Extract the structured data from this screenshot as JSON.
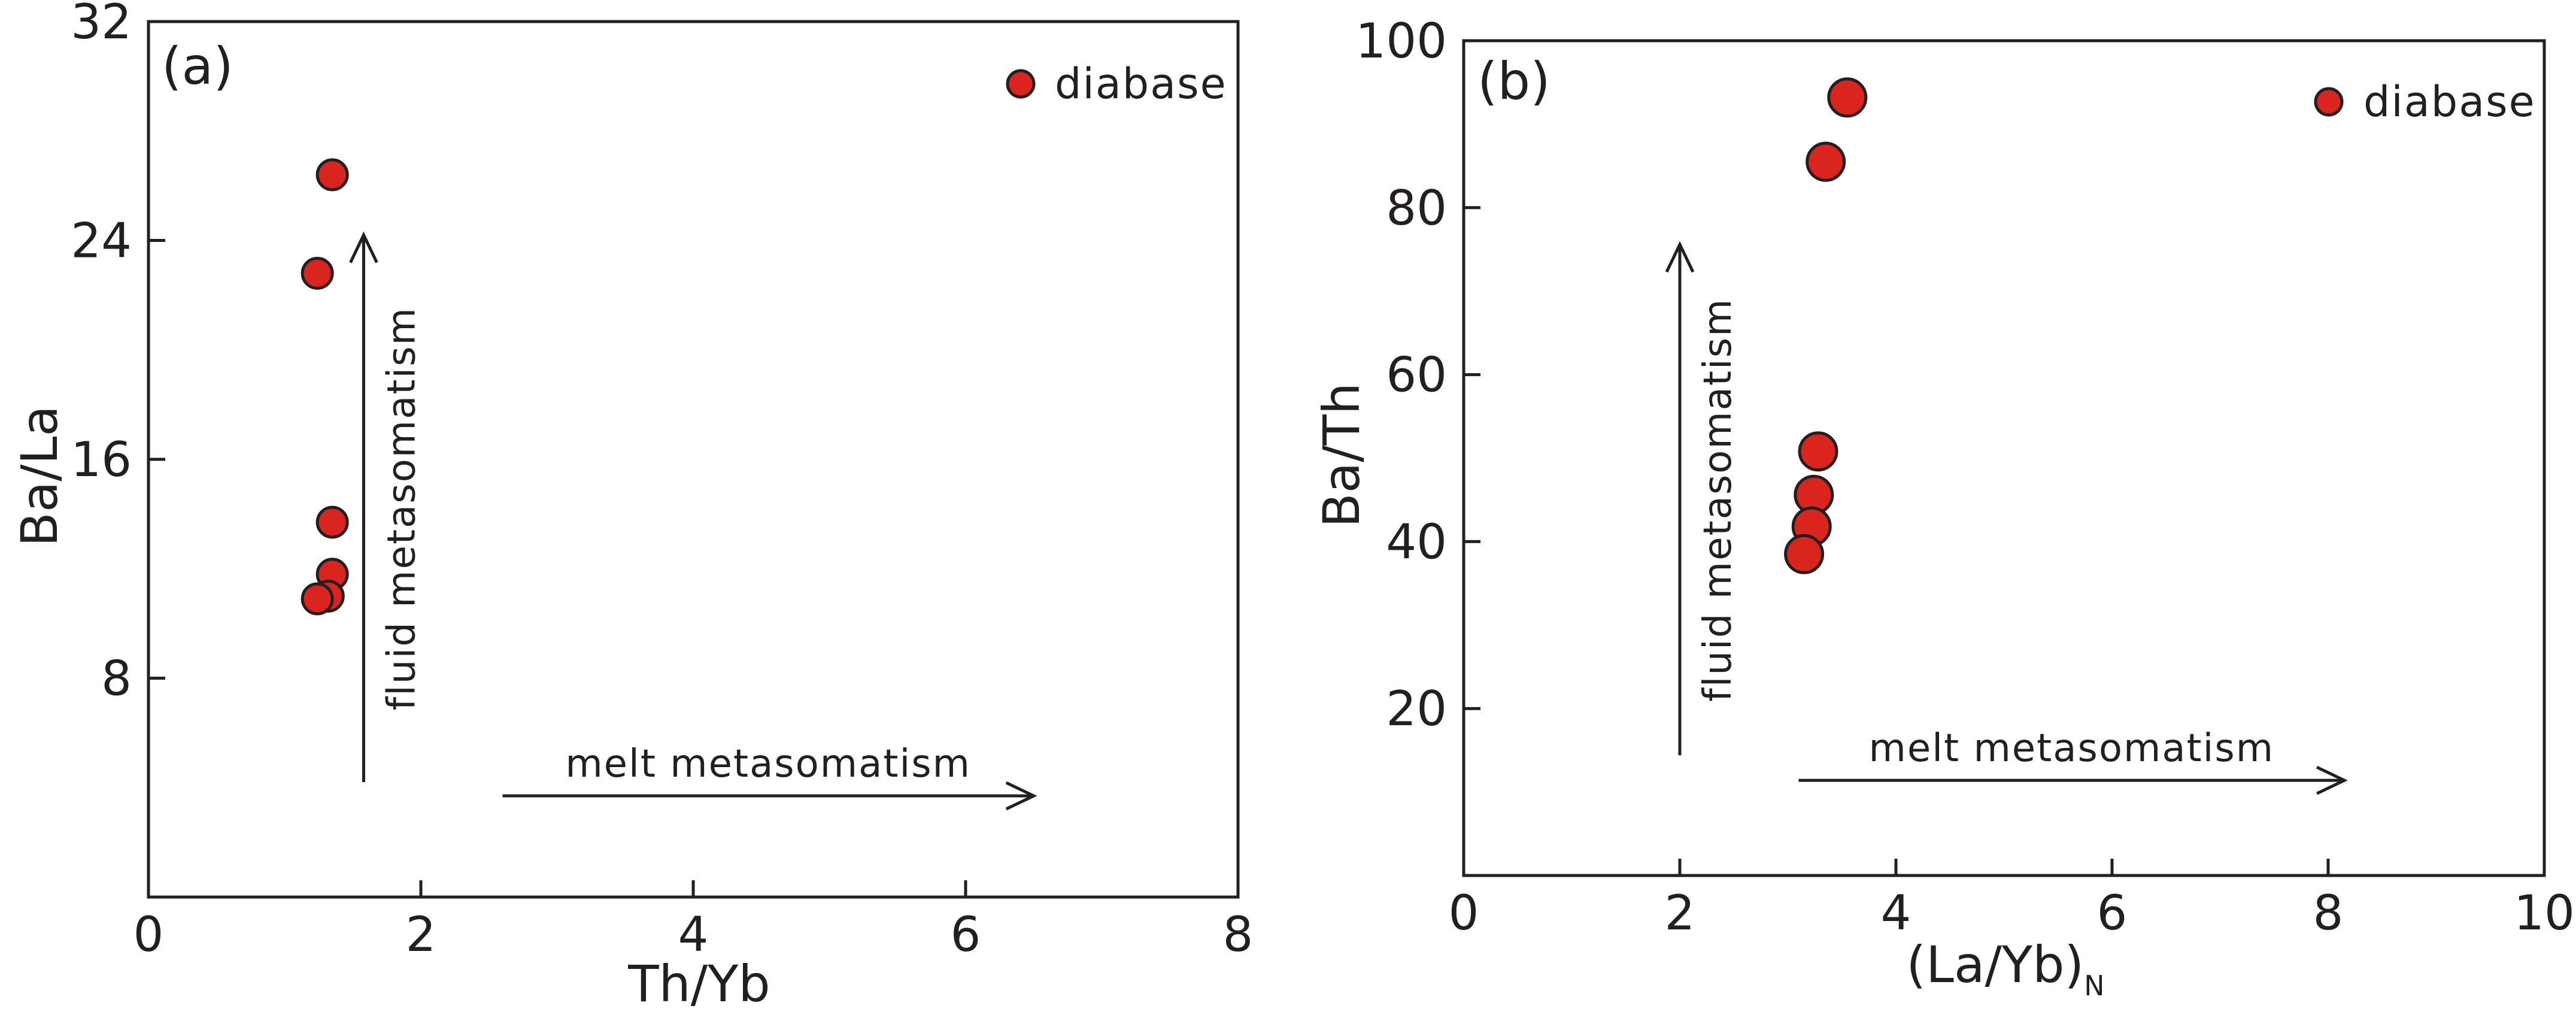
{
  "chart_data": [
    {
      "type": "scatter",
      "panel_label": "(a)",
      "xlabel": "Th/Yb",
      "ylabel": "Ba/La",
      "xlim": [
        0,
        8
      ],
      "ylim": [
        0,
        32
      ],
      "xticks": [
        0,
        2,
        4,
        6,
        8
      ],
      "yticks": [
        8,
        16,
        24,
        32
      ],
      "x_tick_labels": [
        "0",
        "2",
        "4",
        "6",
        "8"
      ],
      "y_tick_labels": [
        "8",
        "16",
        "24",
        "32"
      ],
      "grid": false,
      "legend_position": "top-right",
      "series": [
        {
          "name": "diabase",
          "color": "#d9251d",
          "points": [
            {
              "x": 1.35,
              "y": 26.4
            },
            {
              "x": 1.24,
              "y": 22.8
            },
            {
              "x": 1.35,
              "y": 13.7
            },
            {
              "x": 1.35,
              "y": 11.8
            },
            {
              "x": 1.32,
              "y": 11.0
            },
            {
              "x": 1.24,
              "y": 10.9
            }
          ]
        }
      ],
      "annotations": [
        {
          "text": "fluid metasomatism",
          "direction": "up",
          "x_start": 1.58,
          "y_start": 4.2,
          "x_end": 1.58,
          "y_end": 24.2
        },
        {
          "text": "melt metasomatism",
          "direction": "right",
          "x_start": 2.6,
          "y_start": 3.7,
          "x_end": 6.5,
          "y_end": 3.7
        }
      ]
    },
    {
      "type": "scatter",
      "panel_label": "(b)",
      "xlabel": "(La/Yb)",
      "xlabel_subscript": "N",
      "ylabel": "Ba/Th",
      "xlim": [
        0,
        10
      ],
      "ylim": [
        0,
        100
      ],
      "xticks": [
        0,
        2,
        4,
        6,
        8,
        10
      ],
      "yticks": [
        20,
        40,
        60,
        80,
        100
      ],
      "x_tick_labels": [
        "0",
        "2",
        "4",
        "6",
        "8",
        "10"
      ],
      "y_tick_labels": [
        "20",
        "40",
        "60",
        "80",
        "100"
      ],
      "grid": false,
      "legend_position": "top-right",
      "series": [
        {
          "name": "diabase",
          "color": "#d9251d",
          "points": [
            {
              "x": 3.55,
              "y": 93.2
            },
            {
              "x": 3.35,
              "y": 85.5
            },
            {
              "x": 3.28,
              "y": 50.8
            },
            {
              "x": 3.24,
              "y": 45.6
            },
            {
              "x": 3.22,
              "y": 41.8
            },
            {
              "x": 3.15,
              "y": 38.5
            }
          ]
        }
      ],
      "annotations": [
        {
          "text": "fluid metasomatism",
          "direction": "up",
          "x_start": 2.0,
          "y_start": 14.4,
          "x_end": 2.0,
          "y_end": 75.6
        },
        {
          "text": "melt metasomatism",
          "direction": "right",
          "x_start": 3.1,
          "y_start": 11.4,
          "x_end": 8.15,
          "y_end": 11.4
        }
      ]
    }
  ]
}
